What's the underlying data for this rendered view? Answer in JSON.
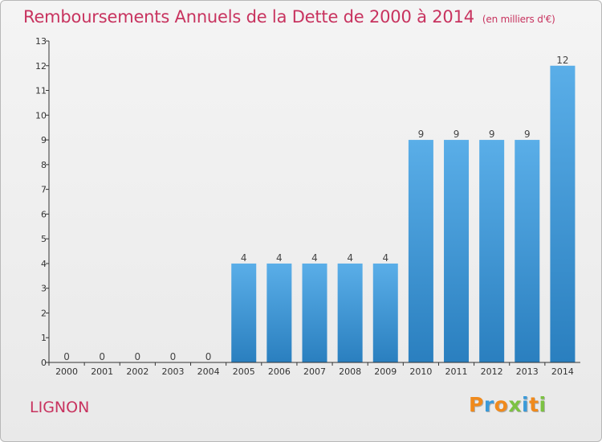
{
  "chart_data": {
    "type": "bar",
    "title": "Remboursements Annuels de la Dette de 2000 à 2014",
    "unit_note": "(en milliers d'€)",
    "categories": [
      "2000",
      "2001",
      "2002",
      "2003",
      "2004",
      "2005",
      "2006",
      "2007",
      "2008",
      "2009",
      "2010",
      "2011",
      "2012",
      "2013",
      "2014"
    ],
    "values": [
      0,
      0,
      0,
      0,
      0,
      4,
      4,
      4,
      4,
      4,
      9,
      9,
      9,
      9,
      12
    ],
    "xlabel": "",
    "ylabel": "",
    "ylim": [
      0,
      13
    ],
    "yticks": [
      "0",
      "1",
      "2",
      "3",
      "4",
      "5",
      "6",
      "7",
      "8",
      "9",
      "10",
      "11",
      "12",
      "13"
    ],
    "grid": false,
    "bar_color_top": "#5aaee8",
    "bar_color_bottom": "#2a7fbf"
  },
  "footer": {
    "commune": "LIGNON",
    "logo_letters": [
      {
        "ch": "P",
        "color": "#f08a1c"
      },
      {
        "ch": "r",
        "color": "#3a9ad9"
      },
      {
        "ch": "o",
        "color": "#f08a1c"
      },
      {
        "ch": "x",
        "color": "#7cc242"
      },
      {
        "ch": "i",
        "color": "#3a9ad9"
      },
      {
        "ch": "t",
        "color": "#f08a1c"
      },
      {
        "ch": "i",
        "color": "#7cc242"
      }
    ]
  },
  "colors": {
    "title": "#c8335f",
    "axis": "#333333",
    "label": "#444444"
  }
}
